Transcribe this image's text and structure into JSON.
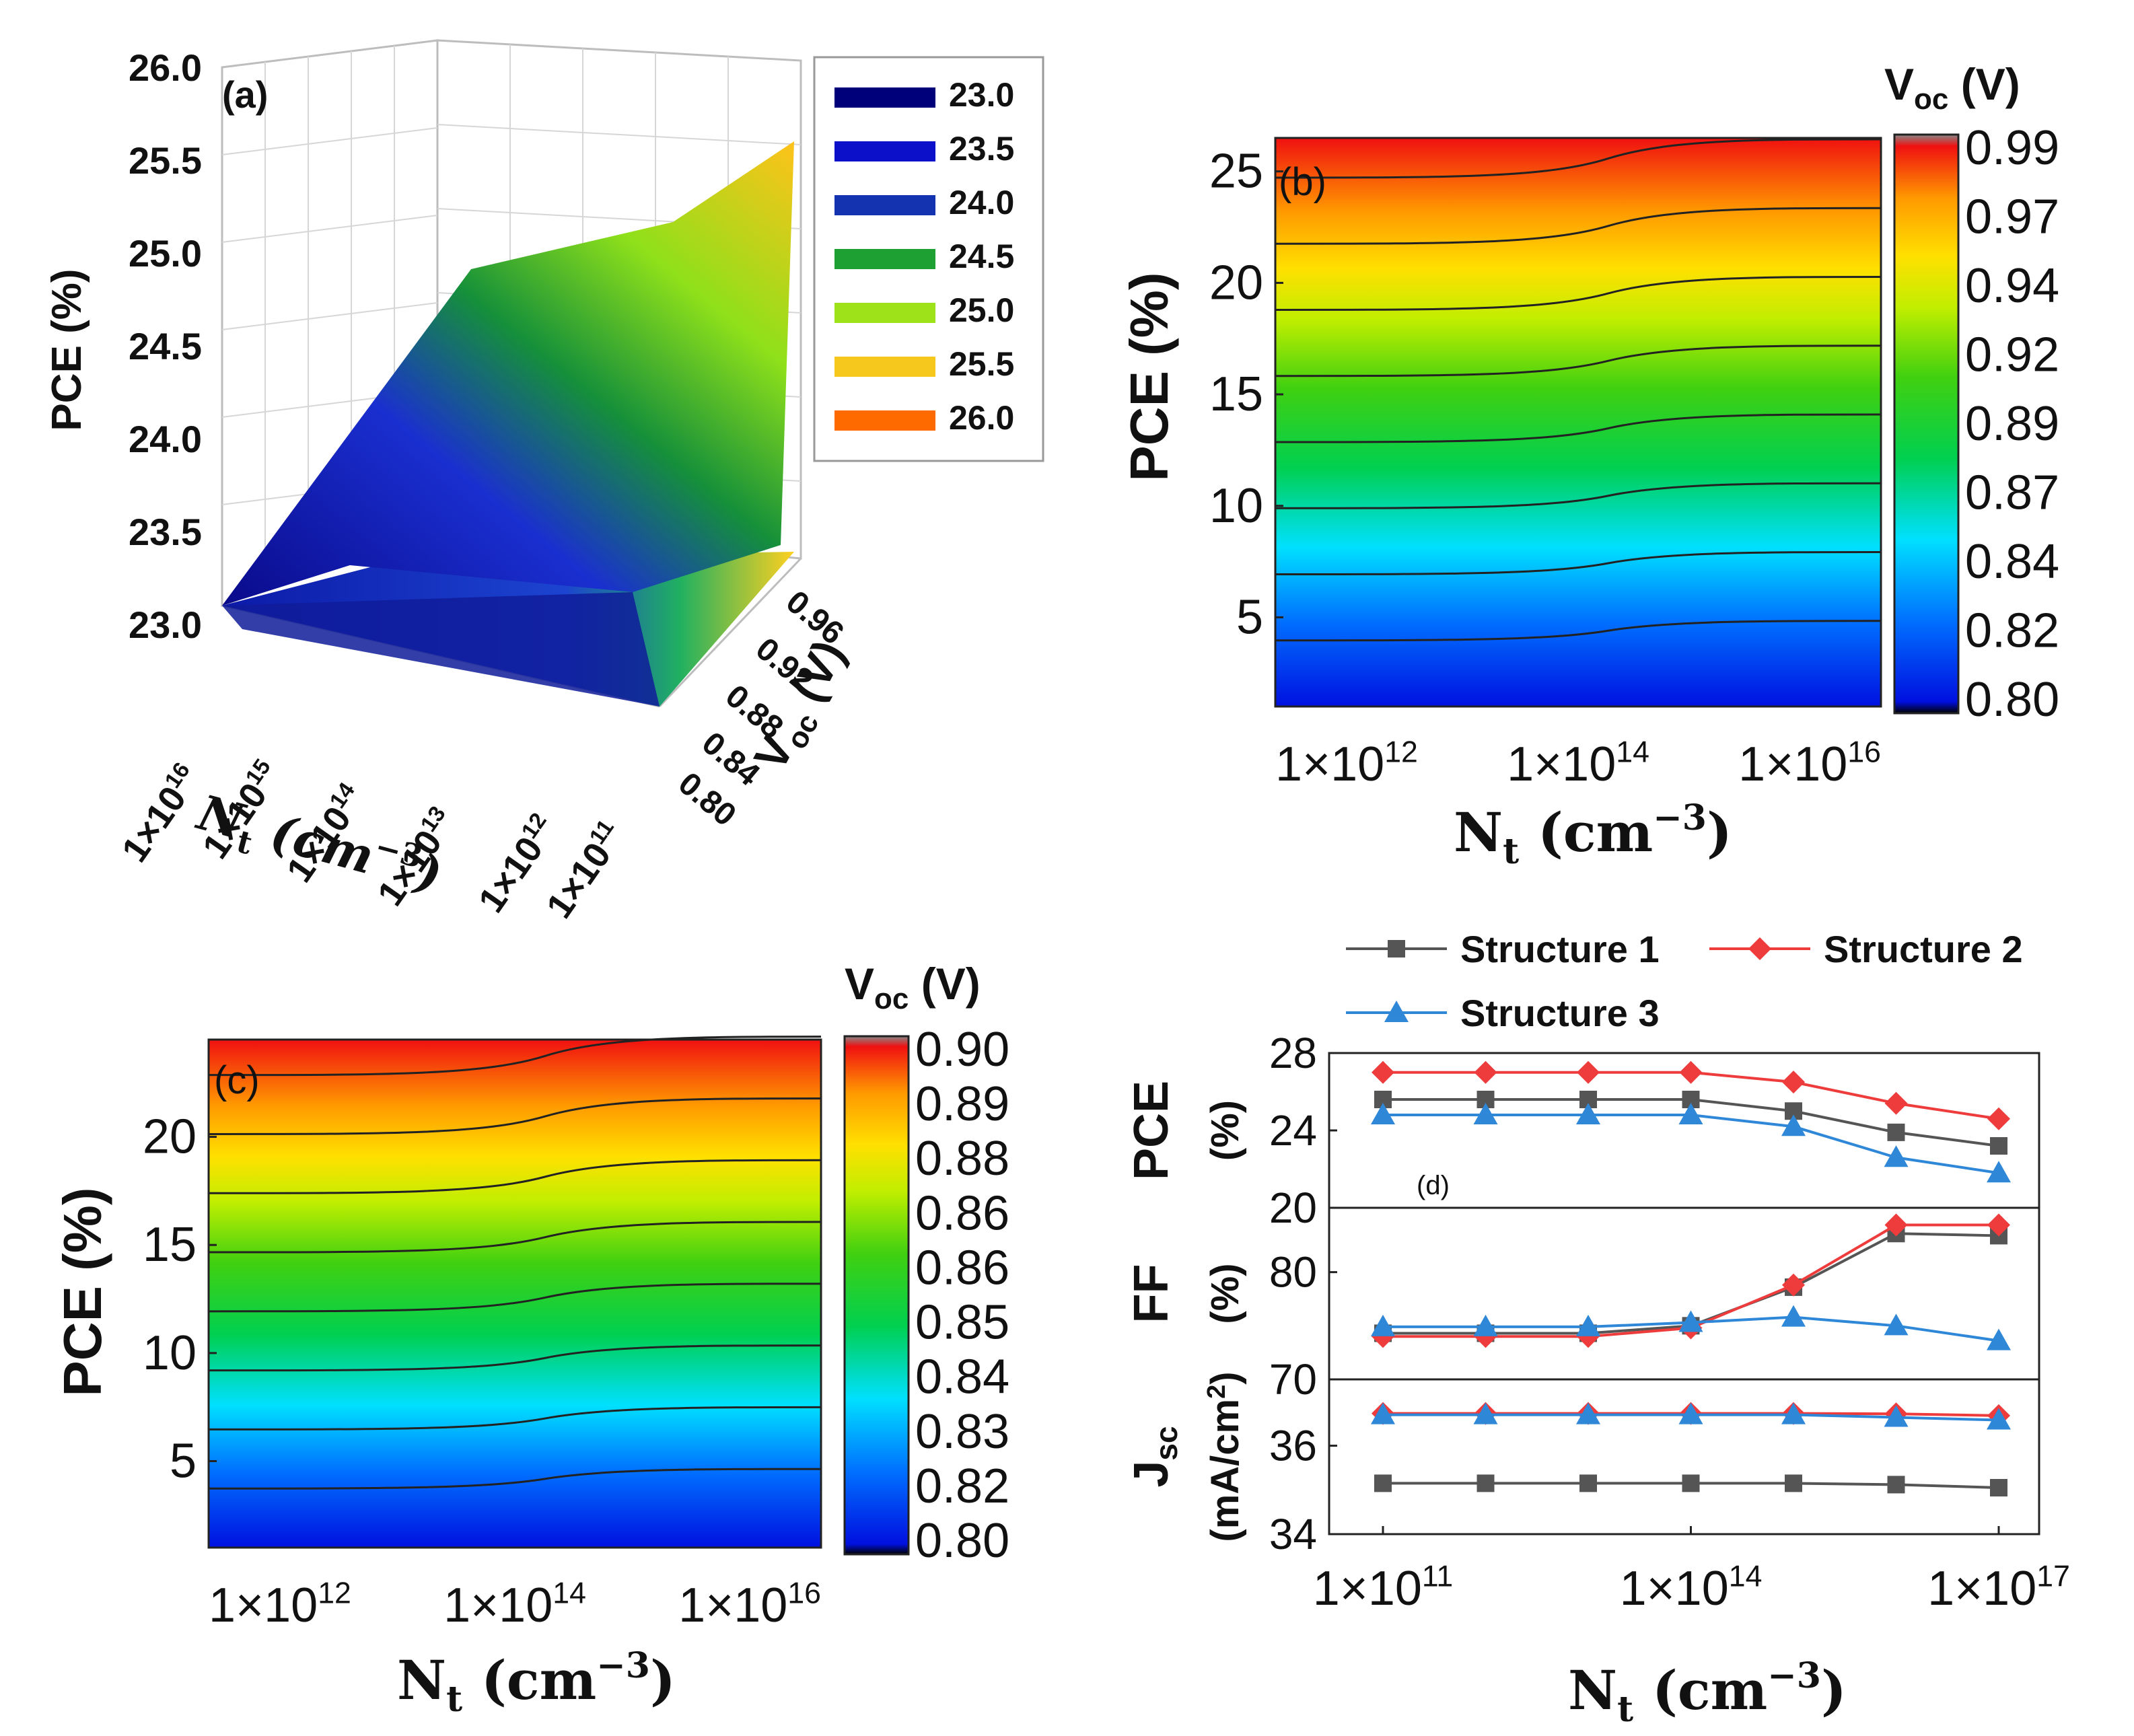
{
  "colors": {
    "jet": [
      "#000080",
      "#0000ff",
      "#0080ff",
      "#00ffff",
      "#00e040",
      "#80ff00",
      "#ffff00",
      "#ffa000",
      "#ff4000",
      "#e00000"
    ],
    "s1": "#555555",
    "s2": "#ee3b3b",
    "s3": "#2f87d8",
    "axis": "#111111",
    "grid": "#cfcfcf"
  },
  "chart_data": [
    {
      "panel_label": "(a)",
      "type": "surface3d",
      "zlabel": "PCE (%)",
      "z_ticks": [
        "26.0",
        "25.5",
        "25.0",
        "24.5",
        "24.0",
        "23.5",
        "23.0"
      ],
      "xlabel": "N",
      "xlabel_sub": "t",
      "xlabel_unit": " (cm",
      "xlabel_exp": "−3",
      "xlabel_close": ")",
      "x_ticks": [
        {
          "mant": "1×10",
          "exp": "16"
        },
        {
          "mant": "1×10",
          "exp": "15"
        },
        {
          "mant": "1×10",
          "exp": "14"
        },
        {
          "mant": "1×10",
          "exp": "13"
        },
        {
          "mant": "1×10",
          "exp": "12"
        },
        {
          "mant": "1×10",
          "exp": "11"
        }
      ],
      "ylabel": "V",
      "ylabel_sub": "oc",
      "ylabel_unit": " (V)",
      "y_ticks": [
        "0.80",
        "0.84",
        "0.88",
        "0.92",
        "0.96"
      ],
      "legend": [
        {
          "label": "23.0",
          "color": "#00007a"
        },
        {
          "label": "23.5",
          "color": "#0c10c8"
        },
        {
          "label": "24.0",
          "color": "#1433b0"
        },
        {
          "label": "24.5",
          "color": "#1ea032"
        },
        {
          "label": "25.0",
          "color": "#9ee21a"
        },
        {
          "label": "25.5",
          "color": "#f6c81e"
        },
        {
          "label": "26.0",
          "color": "#ff6a00"
        }
      ]
    },
    {
      "panel_label": "(b)",
      "type": "heatmap",
      "ylabel": "PCE (%)",
      "y_ticks": [
        "25",
        "20",
        "15",
        "10",
        "5"
      ],
      "y_tick_values": [
        25,
        20,
        15,
        10,
        5
      ],
      "ylim": [
        1,
        26.5
      ],
      "x_ticks": [
        {
          "mant": "1×10",
          "exp": "12"
        },
        {
          "mant": "1×10",
          "exp": "14"
        },
        {
          "mant": "1×10",
          "exp": "16"
        }
      ],
      "xlabel": "N",
      "xlabel_sub": "t",
      "xlabel_unit": " (cm",
      "xlabel_exp": "−3",
      "xlabel_close": ")",
      "colorbar_title": "V",
      "colorbar_sub": "oc",
      "colorbar_unit": " (V)",
      "colorbar_ticks": [
        "0.99",
        "0.97",
        "0.94",
        "0.92",
        "0.89",
        "0.87",
        "0.84",
        "0.82",
        "0.80"
      ]
    },
    {
      "panel_label": "(c)",
      "type": "heatmap",
      "ylabel": "PCE (%)",
      "y_ticks": [
        "20",
        "15",
        "10",
        "5"
      ],
      "y_tick_values": [
        20,
        15,
        10,
        5
      ],
      "ylim": [
        1,
        24.5
      ],
      "x_ticks": [
        {
          "mant": "1×10",
          "exp": "12"
        },
        {
          "mant": "1×10",
          "exp": "14"
        },
        {
          "mant": "1×10",
          "exp": "16"
        }
      ],
      "xlabel": "N",
      "xlabel_sub": "t",
      "xlabel_unit": " (cm",
      "xlabel_exp": "−3",
      "xlabel_close": ")",
      "colorbar_title": "V",
      "colorbar_sub": "oc",
      "colorbar_unit": " (V)",
      "colorbar_ticks": [
        "0.90",
        "0.89",
        "0.88",
        "0.86",
        "0.86",
        "0.85",
        "0.84",
        "0.83",
        "0.82",
        "0.80"
      ]
    },
    {
      "panel_label": "(d)",
      "type": "line",
      "legend": [
        "Structure 1",
        "Structure 2",
        "Structure 3"
      ],
      "x_log10": [
        11,
        12,
        13,
        14,
        15,
        16,
        17
      ],
      "x_ticks": [
        {
          "mant": "1×10",
          "exp": "11"
        },
        {
          "mant": "1×10",
          "exp": "14"
        },
        {
          "mant": "1×10",
          "exp": "17"
        }
      ],
      "xlabel": "N",
      "xlabel_sub": "t",
      "xlabel_unit": " (cm",
      "xlabel_exp": "−3",
      "xlabel_close": ")",
      "subplots": [
        {
          "name": "PCE",
          "ylabel": "PCE",
          "ylabel2": "(%)",
          "ylim": [
            20,
            28
          ],
          "y_ticks": [
            "28",
            "24",
            "20"
          ],
          "y_tick_values": [
            28,
            24,
            20
          ],
          "series": [
            {
              "name": "Structure 1",
              "values": [
                25.6,
                25.6,
                25.6,
                25.6,
                25.0,
                23.9,
                23.2
              ]
            },
            {
              "name": "Structure 2",
              "values": [
                27.0,
                27.0,
                27.0,
                27.0,
                26.5,
                25.4,
                24.6
              ]
            },
            {
              "name": "Structure 3",
              "values": [
                24.8,
                24.8,
                24.8,
                24.8,
                24.2,
                22.6,
                21.8
              ]
            }
          ]
        },
        {
          "name": "FF",
          "ylabel": "FF",
          "ylabel2": "(%)",
          "ylim": [
            70,
            86
          ],
          "y_ticks": [
            "80",
            "70"
          ],
          "y_tick_values": [
            80,
            70
          ],
          "series": [
            {
              "name": "Structure 1",
              "values": [
                74.3,
                74.3,
                74.3,
                75.0,
                78.6,
                83.6,
                83.4
              ]
            },
            {
              "name": "Structure 2",
              "values": [
                74.0,
                74.0,
                74.0,
                74.8,
                78.8,
                84.4,
                84.4
              ]
            },
            {
              "name": "Structure 3",
              "values": [
                74.9,
                74.9,
                74.9,
                75.3,
                75.8,
                75.0,
                73.6
              ]
            }
          ]
        },
        {
          "name": "Jsc",
          "ylabel": "J",
          "ylabel_sub": "sc",
          "ylabel2": "(mA/cm",
          "ylabel2_exp": "2",
          "ylabel2_close": ")",
          "ylim": [
            34,
            37.5
          ],
          "y_ticks": [
            "36",
            "34"
          ],
          "y_tick_values": [
            36,
            34
          ],
          "series": [
            {
              "name": "Structure 1",
              "values": [
                35.15,
                35.15,
                35.15,
                35.15,
                35.15,
                35.12,
                35.05
              ]
            },
            {
              "name": "Structure 2",
              "values": [
                36.73,
                36.73,
                36.73,
                36.73,
                36.73,
                36.72,
                36.68
              ]
            },
            {
              "name": "Structure 3",
              "values": [
                36.7,
                36.7,
                36.7,
                36.7,
                36.7,
                36.64,
                36.58
              ]
            }
          ]
        }
      ],
      "panel_tag": "(d)"
    }
  ]
}
